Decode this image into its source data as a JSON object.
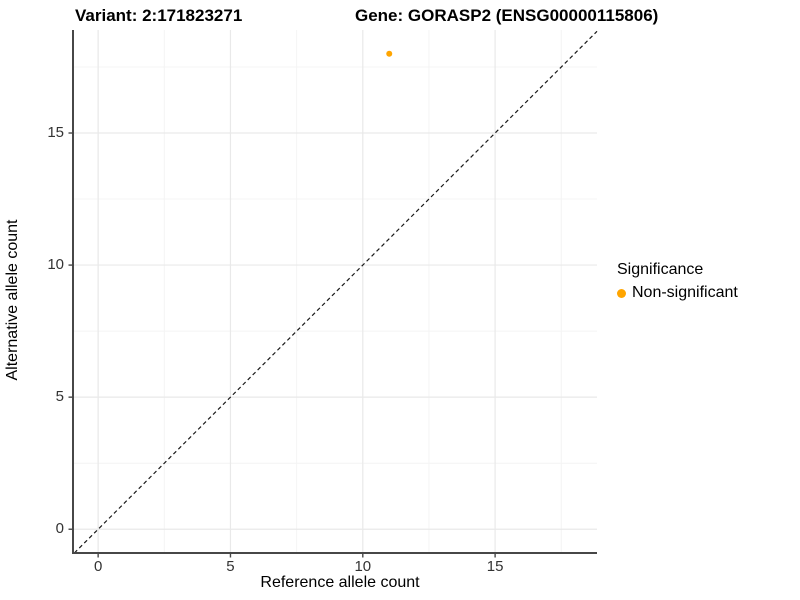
{
  "header": {
    "variant_title": "Variant: 2:171823271",
    "gene_title": "Gene: GORASP2 (ENSG00000115806)"
  },
  "legend": {
    "title": "Significance",
    "items": [
      {
        "label": "Non-significant",
        "color": "#FFA500"
      }
    ]
  },
  "chart_data": {
    "type": "scatter",
    "title": "Variant: 2:171823271 — Gene: GORASP2 (ENSG00000115806)",
    "xlabel": "Reference allele count",
    "ylabel": "Alternative allele count",
    "xlim": [
      -0.95,
      18.85
    ],
    "ylim": [
      -0.9,
      18.9
    ],
    "x_ticks": [
      0,
      5,
      10,
      15
    ],
    "y_ticks": [
      0,
      5,
      10,
      15
    ],
    "x_minor_ticks": [
      2.5,
      7.5,
      12.5,
      17.5
    ],
    "y_minor_ticks": [
      2.5,
      7.5,
      12.5,
      17.5
    ],
    "grid": true,
    "legend_position": "right",
    "series": [
      {
        "name": "Non-significant",
        "color": "#FFA500",
        "points": [
          {
            "x": 11,
            "y": 18
          }
        ]
      }
    ],
    "identity_line": {
      "style": "dashed",
      "color": "#1a1a1a",
      "equation": "y = x"
    },
    "colors": {
      "axis_line": "#474747",
      "tick_mark": "#474747",
      "tick_text": "#333333",
      "grid_major": "#e9e9e9",
      "grid_minor": "#f4f4f4",
      "background": "#ffffff"
    }
  }
}
